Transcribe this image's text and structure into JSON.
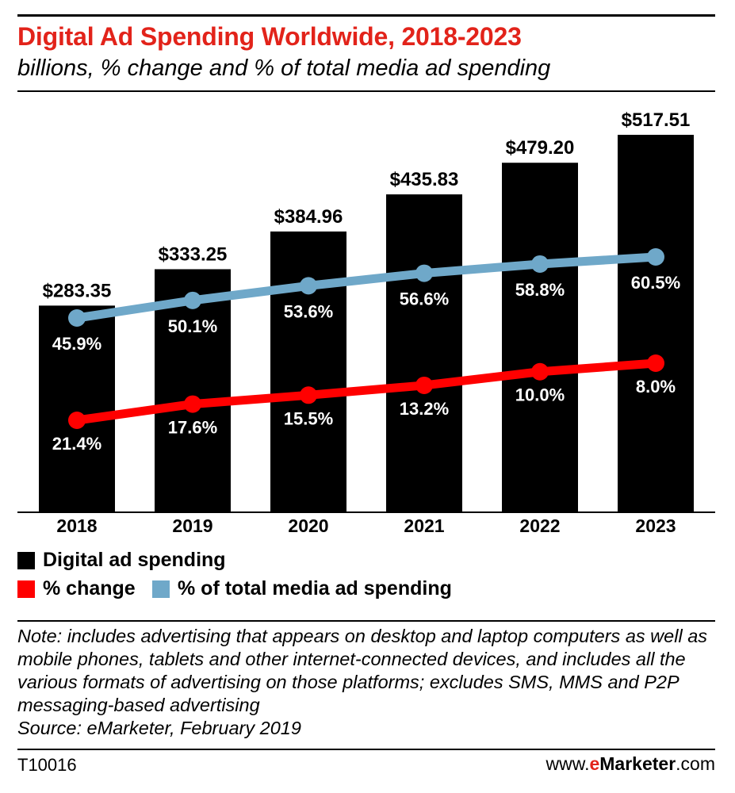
{
  "header": {
    "title": "Digital Ad Spending Worldwide, 2018-2023",
    "subtitle": "billions, % change and % of total media ad spending"
  },
  "legend": {
    "items": [
      {
        "label": "Digital ad spending",
        "color": "#000000"
      },
      {
        "label": "% change",
        "color": "#ff0000"
      },
      {
        "label": "% of total media ad spending",
        "color": "#6fa8c9"
      }
    ]
  },
  "chart_data": {
    "type": "bar",
    "categories": [
      "2018",
      "2019",
      "2020",
      "2021",
      "2022",
      "2023"
    ],
    "title": "Digital Ad Spending Worldwide, 2018-2023",
    "subtitle": "billions, % change and % of total media ad spending",
    "xlabel": "",
    "ylabel": "",
    "grid": false,
    "legend_position": "bottom-left",
    "series": [
      {
        "name": "Digital ad spending",
        "type": "bar",
        "color": "#000000",
        "values": [
          283.35,
          333.25,
          384.96,
          435.83,
          479.2,
          517.51
        ],
        "labels": [
          "$283.35",
          "$333.25",
          "$384.96",
          "$435.83",
          "$479.20",
          "$517.51"
        ]
      },
      {
        "name": "% change",
        "type": "line",
        "color": "#ff0000",
        "values": [
          21.4,
          17.6,
          15.5,
          13.2,
          10.0,
          8.0
        ],
        "labels": [
          "21.4%",
          "17.6%",
          "15.5%",
          "13.2%",
          "10.0%",
          "8.0%"
        ]
      },
      {
        "name": "% of total media ad spending",
        "type": "line",
        "color": "#6fa8c9",
        "values": [
          45.9,
          50.1,
          53.6,
          56.6,
          58.8,
          60.5
        ],
        "labels": [
          "45.9%",
          "50.1%",
          "53.6%",
          "56.6%",
          "58.8%",
          "60.5%"
        ]
      }
    ]
  },
  "footer": {
    "note": "Note: includes advertising that appears on desktop and laptop computers as well as mobile phones, tablets and other internet-connected devices, and includes all the various formats of advertising on those platforms; excludes SMS, MMS and P2P messaging-based advertising",
    "source": "Source: eMarketer, February 2019",
    "table_id": "T10016",
    "brand_prefix": "www.",
    "brand_e": "e",
    "brand_name": "Marketer",
    "brand_suffix": ".com"
  }
}
